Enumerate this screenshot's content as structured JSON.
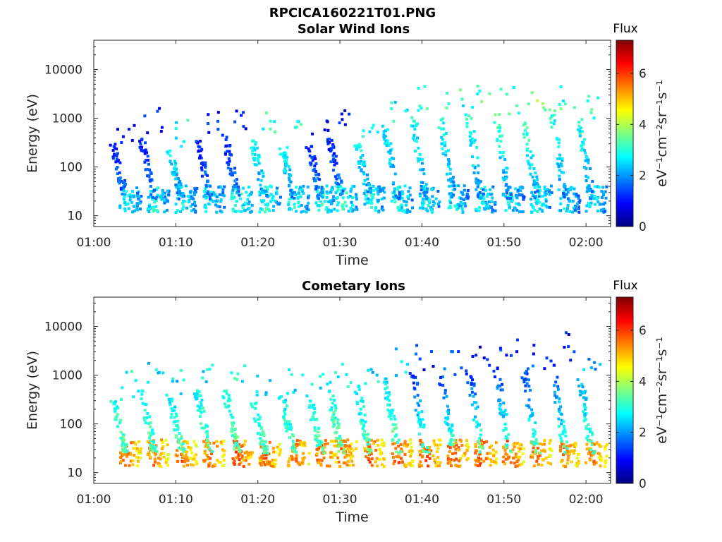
{
  "figure": {
    "title": "RPCICA160221T01.PNG",
    "colorbar_label": "Flux",
    "colorbar_unit_html": "eV⁻¹cm⁻²sr⁻¹s⁻¹",
    "colorbar_ticks": [
      "0",
      "2",
      "4",
      "6"
    ],
    "colorbar_range": [
      0,
      7.3
    ],
    "colormap": [
      "#00007f",
      "#0000ff",
      "#007fff",
      "#00ffff",
      "#7fff7f",
      "#ffff00",
      "#ff7f00",
      "#ff0000",
      "#7f0000"
    ]
  },
  "chart_data": [
    {
      "type": "heatmap",
      "title": "Solar Wind Ions",
      "xlabel": "Time",
      "ylabel": "Energy (eV)",
      "x_ticks": [
        "01:00",
        "01:10",
        "01:20",
        "01:30",
        "01:40",
        "01:50",
        "02:00"
      ],
      "x_range_minutes": [
        0,
        63
      ],
      "y_ticks": [
        "10",
        "100",
        "1000",
        "10000"
      ],
      "y_range_ev": [
        6,
        40000
      ],
      "y_scale": "log",
      "data_coverage_minutes": [
        3.5,
        62.5
      ],
      "recurring_structure": "dispersive ion bursts roughly every 3.3 min",
      "bursts": [
        {
          "t": 3.8,
          "low_ev": 20,
          "low_flux": 3.3,
          "high_ev": 300,
          "high_flux": 1.0
        },
        {
          "t": 7.2,
          "low_ev": 22,
          "low_flux": 3.4,
          "high_ev": 400,
          "high_flux": 1.0
        },
        {
          "t": 10.6,
          "low_ev": 22,
          "low_flux": 3.4,
          "high_ev": 250,
          "high_flux": 2.8
        },
        {
          "t": 14.0,
          "low_ev": 22,
          "low_flux": 3.3,
          "high_ev": 400,
          "high_flux": 1.0
        },
        {
          "t": 17.4,
          "low_ev": 22,
          "low_flux": 3.6,
          "high_ev": 450,
          "high_flux": 1.0
        },
        {
          "t": 20.8,
          "low_ev": 22,
          "low_flux": 3.5,
          "high_ev": 350,
          "high_flux": 3.0
        },
        {
          "t": 24.3,
          "low_ev": 22,
          "low_flux": 3.4,
          "high_ev": 250,
          "high_flux": 2.9
        },
        {
          "t": 27.6,
          "low_ev": 22,
          "low_flux": 3.5,
          "high_ev": 300,
          "high_flux": 1.0
        },
        {
          "t": 30.1,
          "low_ev": 22,
          "low_flux": 3.6,
          "high_ev": 400,
          "high_flux": 1.0
        },
        {
          "t": 33.5,
          "low_ev": 22,
          "low_flux": 3.4,
          "high_ev": 300,
          "high_flux": 2.8
        },
        {
          "t": 36.9,
          "low_ev": 22,
          "low_flux": 3.4,
          "high_ev": 700,
          "high_flux": 2.7
        },
        {
          "t": 40.3,
          "low_ev": 22,
          "low_flux": 3.3,
          "high_ev": 1200,
          "high_flux": 2.9
        },
        {
          "t": 43.7,
          "low_ev": 22,
          "low_flux": 3.3,
          "high_ev": 1000,
          "high_flux": 3.0
        },
        {
          "t": 47.1,
          "low_ev": 22,
          "low_flux": 3.3,
          "high_ev": 1200,
          "high_flux": 3.1
        },
        {
          "t": 50.5,
          "low_ev": 22,
          "low_flux": 3.2,
          "high_ev": 1200,
          "high_flux": 3.3
        },
        {
          "t": 53.9,
          "low_ev": 22,
          "low_flux": 3.3,
          "high_ev": 900,
          "high_flux": 3.5
        },
        {
          "t": 57.3,
          "low_ev": 22,
          "low_flux": 3.2,
          "high_ev": 1500,
          "high_flux": 3.2
        },
        {
          "t": 60.6,
          "low_ev": 22,
          "low_flux": 3.3,
          "high_ev": 1000,
          "high_flux": 3.0
        }
      ]
    },
    {
      "type": "heatmap",
      "title": "Cometary Ions",
      "xlabel": "Time",
      "ylabel": "Energy (eV)",
      "x_ticks": [
        "01:00",
        "01:10",
        "01:20",
        "01:30",
        "01:40",
        "01:50",
        "02:00"
      ],
      "x_range_minutes": [
        0,
        63
      ],
      "y_ticks": [
        "10",
        "100",
        "1000",
        "10000"
      ],
      "y_range_ev": [
        6,
        40000
      ],
      "y_scale": "log",
      "data_coverage_minutes": [
        3.5,
        62.5
      ],
      "recurring_structure": "dispersive ion bursts roughly every 3.3 min",
      "bursts": [
        {
          "t": 3.8,
          "low_ev": 25,
          "low_flux": 6.1,
          "high_ev": 300,
          "high_flux": 2.9
        },
        {
          "t": 7.2,
          "low_ev": 25,
          "low_flux": 6.0,
          "high_ev": 500,
          "high_flux": 2.7
        },
        {
          "t": 10.6,
          "low_ev": 25,
          "low_flux": 6.0,
          "high_ev": 400,
          "high_flux": 2.6
        },
        {
          "t": 14.0,
          "low_ev": 25,
          "low_flux": 6.1,
          "high_ev": 500,
          "high_flux": 2.7
        },
        {
          "t": 17.4,
          "low_ev": 25,
          "low_flux": 6.3,
          "high_ev": 500,
          "high_flux": 2.8
        },
        {
          "t": 20.8,
          "low_ev": 25,
          "low_flux": 6.1,
          "high_ev": 300,
          "high_flux": 2.7
        },
        {
          "t": 24.3,
          "low_ev": 25,
          "low_flux": 6.0,
          "high_ev": 400,
          "high_flux": 2.6
        },
        {
          "t": 27.6,
          "low_ev": 25,
          "low_flux": 6.1,
          "high_ev": 400,
          "high_flux": 2.7
        },
        {
          "t": 30.1,
          "low_ev": 25,
          "low_flux": 6.2,
          "high_ev": 500,
          "high_flux": 2.8
        },
        {
          "t": 33.5,
          "low_ev": 25,
          "low_flux": 6.1,
          "high_ev": 600,
          "high_flux": 2.6
        },
        {
          "t": 36.9,
          "low_ev": 25,
          "low_flux": 6.2,
          "high_ev": 900,
          "high_flux": 2.5
        },
        {
          "t": 40.3,
          "low_ev": 25,
          "low_flux": 6.3,
          "high_ev": 1200,
          "high_flux": 1.2
        },
        {
          "t": 43.7,
          "low_ev": 25,
          "low_flux": 6.2,
          "high_ev": 1000,
          "high_flux": 1.4
        },
        {
          "t": 47.1,
          "low_ev": 25,
          "low_flux": 6.3,
          "high_ev": 1500,
          "high_flux": 1.1
        },
        {
          "t": 50.5,
          "low_ev": 25,
          "low_flux": 6.2,
          "high_ev": 1500,
          "high_flux": 1.1
        },
        {
          "t": 53.9,
          "low_ev": 25,
          "low_flux": 6.1,
          "high_ev": 1200,
          "high_flux": 1.3
        },
        {
          "t": 57.3,
          "low_ev": 25,
          "low_flux": 6.0,
          "high_ev": 2000,
          "high_flux": 1.1
        },
        {
          "t": 60.6,
          "low_ev": 25,
          "low_flux": 5.9,
          "high_ev": 1200,
          "high_flux": 2.0
        }
      ]
    }
  ]
}
